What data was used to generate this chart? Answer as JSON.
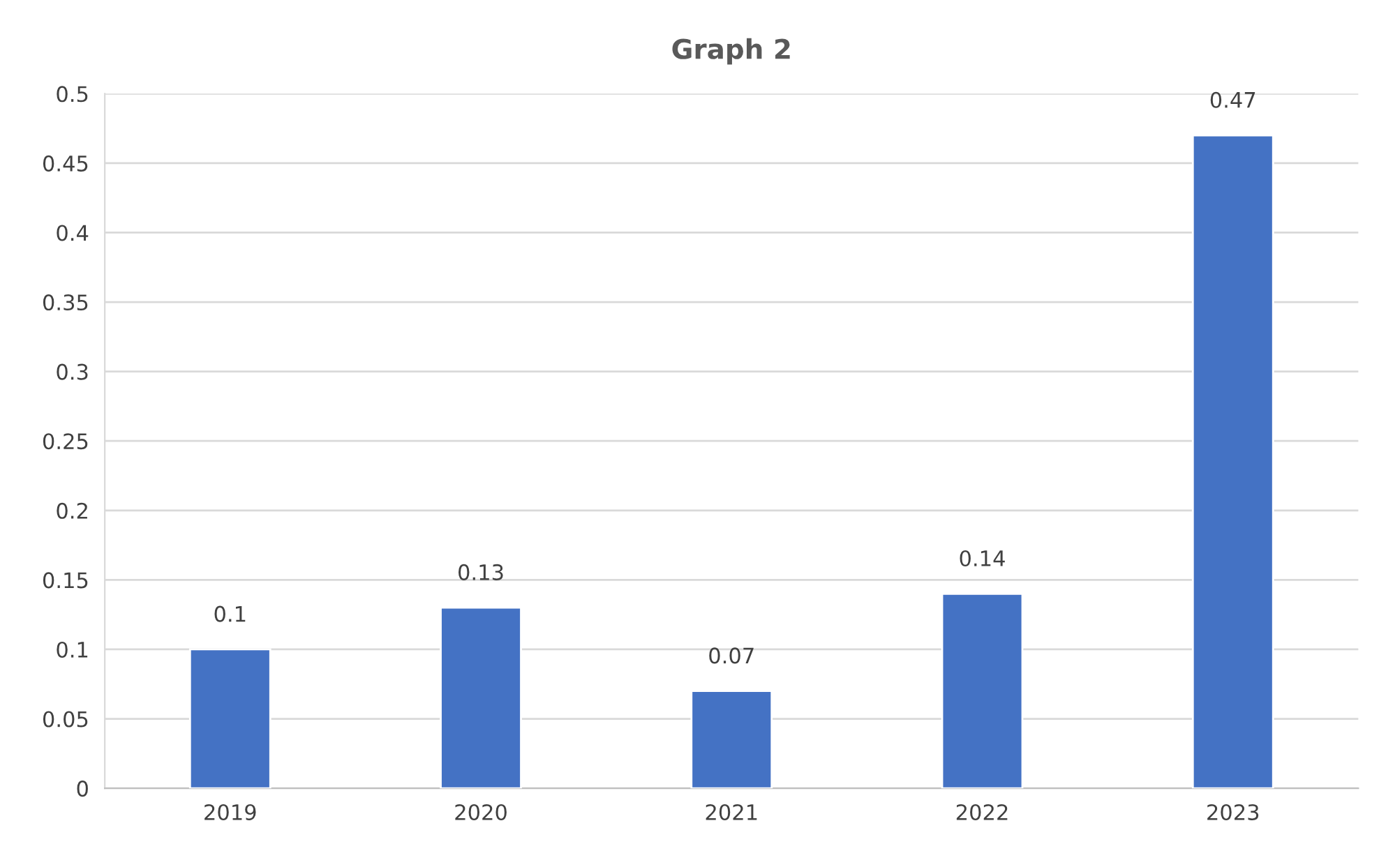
{
  "chart_data": {
    "type": "bar",
    "title": "Graph 2",
    "categories": [
      "2019",
      "2020",
      "2021",
      "2022",
      "2023"
    ],
    "values": [
      0.1,
      0.13,
      0.07,
      0.14,
      0.47
    ],
    "color": "#4472c4",
    "ylim": [
      0,
      0.5
    ],
    "yticks": [
      0,
      0.05,
      0.1,
      0.15,
      0.2,
      0.25,
      0.3,
      0.35,
      0.4,
      0.45,
      0.5
    ],
    "grid": "y",
    "data_labels": true,
    "legend": false
  }
}
